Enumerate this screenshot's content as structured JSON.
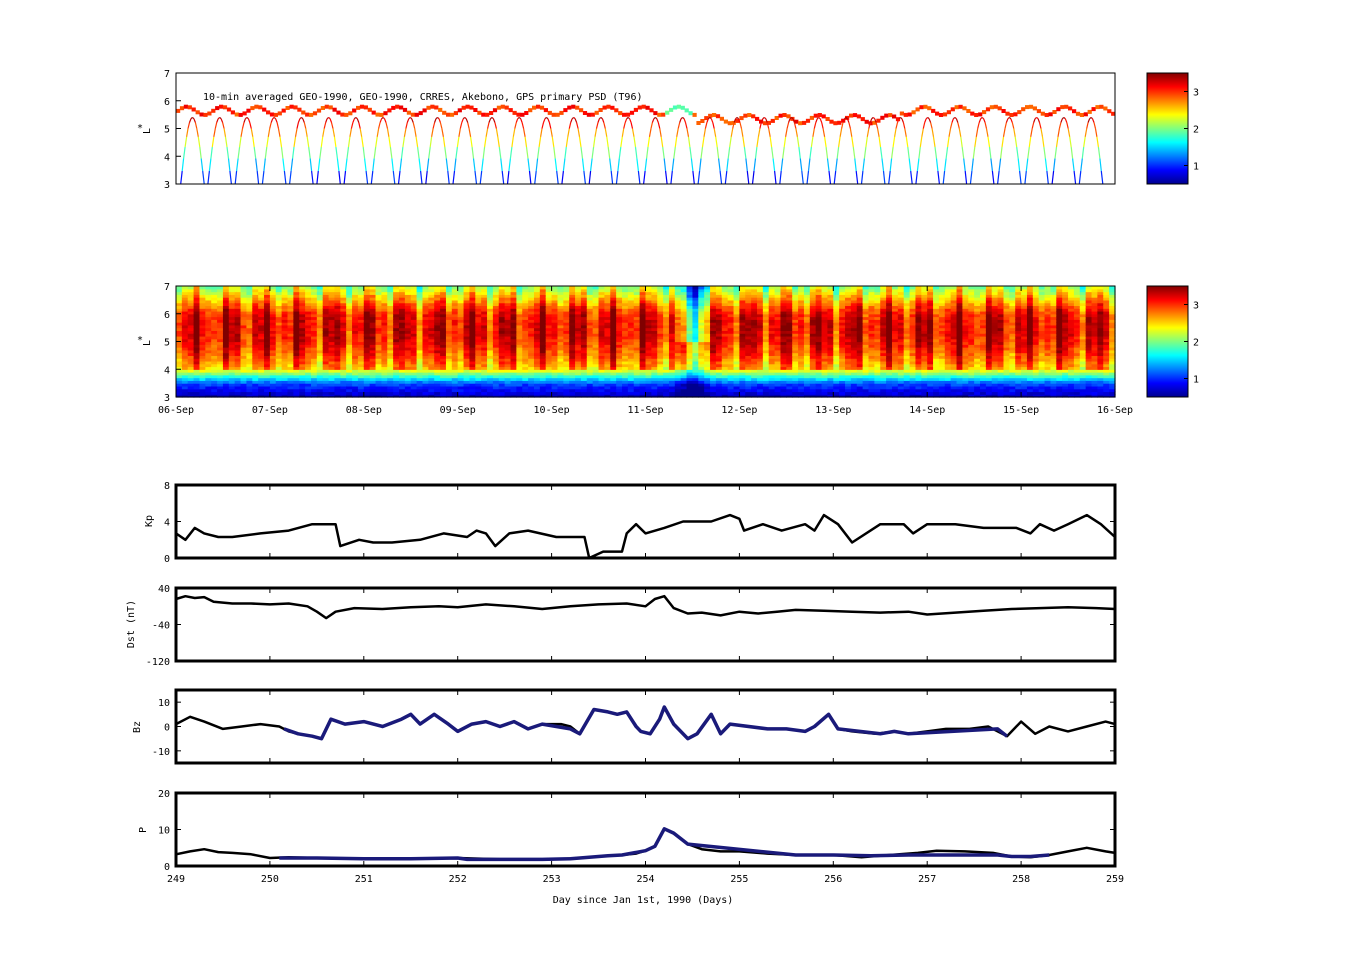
{
  "chart_data": [
    {
      "type": "heatmap",
      "id": "psd-observed",
      "title": "10-min averaged GEO-1990, GEO-1990, CRRES, Akebono, GPS  primary PSD (T96)",
      "xlabel": "",
      "ylabel": "L",
      "ylabel_super": "*",
      "xlim": [
        249,
        259
      ],
      "ylim": [
        3,
        7
      ],
      "yticks": [
        "3",
        "4",
        "5",
        "6",
        "7"
      ],
      "colorbar_ticks": [
        "1",
        "2",
        "3"
      ],
      "colorbar_range": [
        0.5,
        3.5
      ],
      "colormap": [
        "#00008f",
        "#0000ff",
        "#0080ff",
        "#00ffff",
        "#80ff80",
        "#ffff00",
        "#ff8000",
        "#ff0000",
        "#800000"
      ]
    },
    {
      "type": "heatmap",
      "id": "psd-reanalysis",
      "xlabel": "",
      "ylabel": "L",
      "ylabel_super": "*",
      "xlim": [
        249,
        259
      ],
      "ylim": [
        3,
        7
      ],
      "yticks": [
        "3",
        "4",
        "5",
        "6",
        "7"
      ],
      "xticklabels": [
        "06-Sep",
        "07-Sep",
        "08-Sep",
        "09-Sep",
        "10-Sep",
        "11-Sep",
        "12-Sep",
        "13-Sep",
        "14-Sep",
        "15-Sep",
        "16-Sep"
      ],
      "colorbar_ticks": [
        "1",
        "2",
        "3"
      ],
      "colorbar_range": [
        0.5,
        3.5
      ]
    },
    {
      "type": "line",
      "id": "kp",
      "ylabel": "Kp",
      "xlim": [
        249,
        259
      ],
      "ylim": [
        0,
        8
      ],
      "yticks": [
        "0",
        "4",
        "8"
      ],
      "series": [
        {
          "color": "#000000",
          "x": [
            249,
            249.1,
            249.2,
            249.3,
            249.45,
            249.6,
            249.9,
            250.2,
            250.45,
            250.7,
            250.75,
            250.95,
            251.1,
            251.3,
            251.6,
            251.85,
            252.1,
            252.2,
            252.3,
            252.4,
            252.55,
            252.75,
            253.05,
            253.35,
            253.4,
            253.55,
            253.75,
            253.8,
            253.9,
            254.0,
            254.2,
            254.4,
            254.7,
            254.9,
            255.0,
            255.05,
            255.25,
            255.45,
            255.7,
            255.8,
            255.9,
            256.05,
            256.2,
            256.5,
            256.75,
            256.85,
            257.0,
            257.3,
            257.6,
            257.95,
            258.1,
            258.2,
            258.35,
            258.5,
            258.7,
            258.85,
            259.0
          ],
          "y": [
            2.7,
            2.0,
            3.3,
            2.7,
            2.3,
            2.3,
            2.7,
            3.0,
            3.7,
            3.7,
            1.3,
            2.0,
            1.7,
            1.7,
            2.0,
            2.7,
            2.3,
            3.0,
            2.7,
            1.3,
            2.7,
            3.0,
            2.3,
            2.3,
            0.0,
            0.7,
            0.7,
            2.7,
            3.7,
            2.7,
            3.3,
            4.0,
            4.0,
            4.7,
            4.3,
            3.0,
            3.7,
            3.0,
            3.7,
            3.0,
            4.7,
            3.7,
            1.7,
            3.7,
            3.7,
            2.7,
            3.7,
            3.7,
            3.3,
            3.3,
            2.7,
            3.7,
            3.0,
            3.7,
            4.7,
            3.7,
            2.3
          ]
        }
      ]
    },
    {
      "type": "line",
      "id": "dst",
      "ylabel": "Dst (nT)",
      "xlim": [
        249,
        259
      ],
      "ylim": [
        -120,
        40
      ],
      "yticks": [
        "-120",
        "-40",
        "40"
      ],
      "series": [
        {
          "color": "#000000",
          "x": [
            249,
            249.1,
            249.2,
            249.3,
            249.4,
            249.6,
            249.8,
            250.0,
            250.2,
            250.4,
            250.5,
            250.6,
            250.7,
            250.9,
            251.2,
            251.5,
            251.8,
            252.0,
            252.3,
            252.6,
            252.9,
            253.2,
            253.5,
            253.8,
            254.0,
            254.1,
            254.2,
            254.3,
            254.45,
            254.6,
            254.8,
            255.0,
            255.2,
            255.4,
            255.6,
            255.9,
            256.2,
            256.5,
            256.8,
            257.0,
            257.3,
            257.6,
            257.9,
            258.2,
            258.5,
            258.8,
            259.0
          ],
          "y": [
            16,
            22,
            18,
            20,
            10,
            6,
            6,
            4,
            6,
            0,
            -12,
            -26,
            -12,
            -4,
            -6,
            -2,
            0,
            -2,
            4,
            0,
            -6,
            0,
            4,
            6,
            0,
            16,
            22,
            -4,
            -16,
            -14,
            -20,
            -12,
            -16,
            -12,
            -8,
            -10,
            -12,
            -14,
            -12,
            -18,
            -14,
            -10,
            -6,
            -4,
            -2,
            -4,
            -6
          ]
        }
      ]
    },
    {
      "type": "line",
      "id": "bz",
      "ylabel": "Bz",
      "xlim": [
        249,
        259
      ],
      "ylim": [
        -15,
        15
      ],
      "yticks": [
        "-10",
        "0",
        "10"
      ],
      "series": [
        {
          "color": "#000000",
          "x": [
            249,
            249.15,
            249.3,
            249.5,
            249.7,
            249.9,
            250.1,
            250.2,
            250.3,
            250.45,
            250.55,
            250.65,
            250.8,
            251.0,
            251.2,
            251.4,
            251.5,
            251.6,
            251.75,
            251.9,
            252.0,
            252.15,
            252.3,
            252.45,
            252.6,
            252.75,
            252.9,
            253.1,
            253.2,
            253.3,
            253.45,
            253.6,
            253.7,
            253.8,
            253.9,
            253.95,
            254.05,
            254.15,
            254.2,
            254.3,
            254.45,
            254.55,
            254.7,
            254.8,
            254.9,
            255.1,
            255.3,
            255.5,
            255.7,
            255.8,
            255.95,
            256.05,
            256.2,
            256.45,
            256.65,
            256.8,
            257.0,
            257.2,
            257.45,
            257.65,
            257.85,
            258.0,
            258.15,
            258.3,
            258.5,
            258.7,
            258.9,
            259.0
          ],
          "y": [
            1,
            4,
            2,
            -1,
            0,
            1,
            0,
            -2,
            -3,
            -4,
            -5,
            3,
            1,
            2,
            0,
            3,
            5,
            1,
            5,
            1,
            -2,
            1,
            2,
            0,
            2,
            -1,
            1,
            1,
            0,
            -3,
            7,
            6,
            5,
            6,
            0,
            -2,
            -3,
            3,
            8,
            1,
            -5,
            -3,
            5,
            -3,
            1,
            0,
            -1,
            -1,
            -2,
            0,
            5,
            -1,
            -2,
            -3,
            -2,
            -3,
            -2,
            -1,
            -1,
            0,
            -4,
            2,
            -3,
            0,
            -2,
            0,
            2,
            1
          ]
        },
        {
          "color": "#1a1a7a",
          "x": [
            250.15,
            250.3,
            250.45,
            250.55,
            250.65,
            250.8,
            251.0,
            251.2,
            251.4,
            251.5,
            251.6,
            251.75,
            251.9,
            252.0,
            252.15,
            252.3,
            252.45,
            252.6,
            252.75,
            252.9,
            253.05,
            253.2,
            253.3,
            253.45,
            253.6,
            253.7,
            253.8,
            253.9,
            253.95,
            254.05,
            254.15,
            254.2,
            254.3,
            254.45,
            254.55,
            254.7,
            254.8,
            254.9,
            255.3,
            255.5,
            255.7,
            255.8,
            255.95,
            256.05,
            256.5,
            256.65,
            256.8,
            257.75,
            257.85
          ],
          "y": [
            -1,
            -3,
            -4,
            -5,
            3,
            1,
            2,
            0,
            3,
            5,
            1,
            5,
            1,
            -2,
            1,
            2,
            0,
            2,
            -1,
            1,
            0,
            -1,
            -3,
            7,
            6,
            5,
            6,
            0,
            -2,
            -3,
            3,
            8,
            1,
            -5,
            -3,
            5,
            -3,
            1,
            -1,
            -1,
            -2,
            0,
            5,
            -1,
            -3,
            -2,
            -3,
            -1,
            -4
          ]
        }
      ]
    },
    {
      "type": "line",
      "id": "pdyn",
      "ylabel": "P",
      "xlabel": "Day since Jan 1st, 1990 (Days)",
      "xlim": [
        249,
        259
      ],
      "ylim": [
        0,
        20
      ],
      "yticks": [
        "0",
        "10",
        "20"
      ],
      "xticklabels": [
        "249",
        "250",
        "251",
        "252",
        "253",
        "254",
        "255",
        "256",
        "257",
        "258",
        "259"
      ],
      "series": [
        {
          "color": "#000000",
          "x": [
            249,
            249.15,
            249.3,
            249.45,
            249.6,
            249.8,
            250.0,
            250.2,
            250.5,
            251.0,
            251.5,
            252.0,
            252.5,
            253.0,
            253.3,
            253.6,
            253.75,
            253.9,
            254.0,
            254.1,
            254.2,
            254.3,
            254.45,
            254.6,
            254.8,
            255.0,
            255.3,
            255.6,
            256.0,
            256.3,
            256.6,
            256.9,
            257.1,
            257.4,
            257.7,
            257.9,
            258.1,
            258.3,
            258.5,
            258.7,
            258.9,
            259.0
          ],
          "y": [
            3.2,
            4.0,
            4.6,
            3.8,
            3.6,
            3.2,
            2.2,
            2.4,
            2.2,
            2.0,
            2.0,
            2.2,
            1.8,
            1.8,
            2.2,
            2.8,
            3.0,
            3.4,
            4.2,
            5.4,
            10.2,
            9.0,
            6.0,
            4.6,
            4.0,
            4.0,
            3.4,
            3.0,
            3.0,
            2.4,
            3.0,
            3.6,
            4.2,
            4.0,
            3.6,
            2.6,
            2.4,
            3.0,
            4.0,
            5.0,
            4.0,
            3.6
          ]
        },
        {
          "color": "#1a1a7a",
          "x": [
            250.1,
            250.5,
            251.0,
            251.5,
            252.0,
            252.1,
            252.5,
            252.9,
            253.2,
            253.3,
            253.6,
            253.75,
            254.0,
            254.1,
            254.2,
            254.3,
            254.45,
            255.6,
            256.0,
            256.4,
            256.8,
            257.75,
            257.9,
            258.1,
            258.3
          ],
          "y": [
            2.2,
            2.2,
            2.0,
            2.0,
            2.2,
            1.8,
            1.8,
            1.8,
            2.0,
            2.2,
            2.8,
            3.0,
            4.2,
            5.4,
            10.2,
            9.0,
            6.0,
            3.0,
            3.0,
            2.8,
            3.0,
            3.0,
            2.6,
            2.6,
            3.0
          ]
        }
      ]
    }
  ]
}
